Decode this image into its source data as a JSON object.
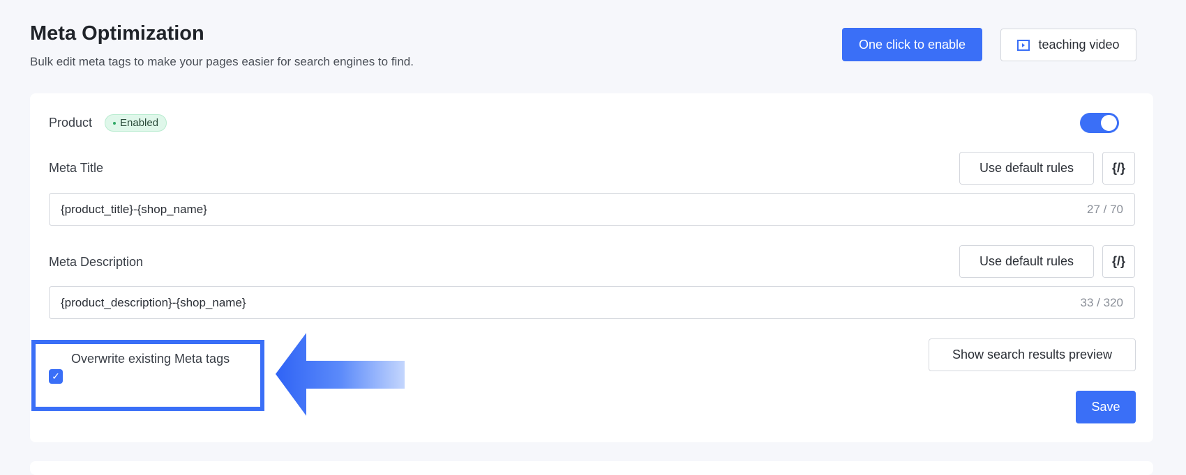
{
  "header": {
    "title": "Meta Optimization",
    "subtitle": "Bulk edit meta tags to make your pages easier for search engines to find.",
    "enable_button": "One click to enable",
    "video_button": "teaching video"
  },
  "section": {
    "label": "Product",
    "badge": "Enabled",
    "toggle_on": true
  },
  "meta_title": {
    "label": "Meta Title",
    "default_button": "Use default rules",
    "code_button": "{/}",
    "value": "{product_title}-{shop_name}",
    "count": "27 / 70"
  },
  "meta_description": {
    "label": "Meta Description",
    "default_button": "Use default rules",
    "code_button": "{/}",
    "value": "{product_description}-{shop_name}",
    "count": "33 / 320"
  },
  "overwrite": {
    "label": "Overwrite existing Meta tags",
    "checked": true
  },
  "preview_button": "Show search results preview",
  "save_button": "Save",
  "colors": {
    "accent": "#3a6ff7",
    "badge_bg": "#dff7ea"
  }
}
